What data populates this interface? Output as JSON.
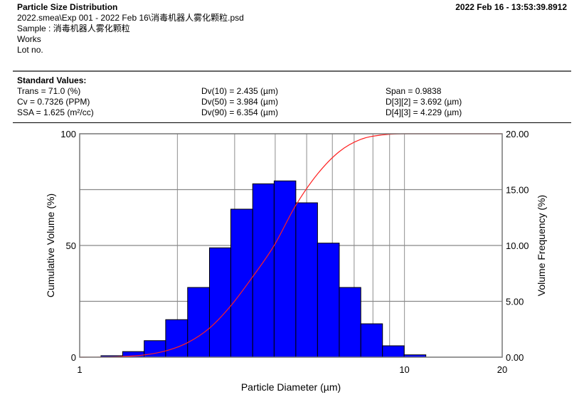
{
  "header": {
    "title": "Particle Size Distribution",
    "timestamp": "2022 Feb 16 - 13:53:39.8912",
    "file": "2022.smea\\Exp 001 - 2022 Feb 16\\消毒机器人雾化颗粒.psd",
    "sample": "Sample : 消毒机器人雾化颗粒",
    "works": "Works",
    "lot": "Lot no."
  },
  "standard_values": {
    "heading": "Standard Values:",
    "col1": [
      "Trans = 71.0 (%)",
      "Cv = 0.7326 (PPM)",
      "SSA = 1.625 (m²/cc)"
    ],
    "col2": [
      "Dv(10) = 2.435 (µm)",
      "Dv(50) = 3.984 (µm)",
      "Dv(90) = 6.354 (µm)"
    ],
    "col3": [
      "Span = 0.9838",
      "D[3][2] = 3.692 (µm)",
      "D[4][3] = 4.229 (µm)"
    ]
  },
  "chart_data": {
    "type": "bar",
    "xlabel": "Particle Diameter (µm)",
    "ylabel": "Cumulative Volume (%)",
    "y2label": "Volume Frequency (%)",
    "xscale": "log",
    "xlim": [
      1,
      20
    ],
    "ylim": [
      0,
      100
    ],
    "y2lim": [
      0,
      20
    ],
    "x_tick_labels": [
      "1",
      "10",
      "20"
    ],
    "y_tick_labels": [
      "0",
      "50",
      "100"
    ],
    "y2_tick_labels": [
      "0.00",
      "5.00",
      "10.00",
      "15.00",
      "20.00"
    ],
    "grid": true,
    "colors": {
      "bars": "#0000ff",
      "curve": "#ff2020",
      "grid": "#a0a0a0"
    },
    "bin_edges": [
      1.163,
      1.356,
      1.58,
      1.84,
      2.15,
      2.51,
      2.92,
      3.41,
      3.97,
      4.63,
      5.4,
      6.3,
      7.34,
      8.56,
      9.98,
      11.64
    ],
    "frequency": [
      0.13,
      0.5,
      1.48,
      3.36,
      6.24,
      9.79,
      13.25,
      15.52,
      15.78,
      13.82,
      10.21,
      6.24,
      2.99,
      1.02,
      0.21
    ],
    "cumulative": {
      "x": [
        1.0,
        1.163,
        1.356,
        1.58,
        1.84,
        2.15,
        2.51,
        2.92,
        3.41,
        3.97,
        4.63,
        5.4,
        6.3,
        7.34,
        8.56,
        9.98,
        11.64,
        20
      ],
      "y": [
        0,
        0.05,
        0.3,
        1.0,
        2.8,
        6.5,
        13.0,
        23.0,
        36.0,
        50.0,
        68.0,
        82.0,
        92.0,
        97.5,
        99.5,
        100,
        100,
        100
      ]
    }
  }
}
